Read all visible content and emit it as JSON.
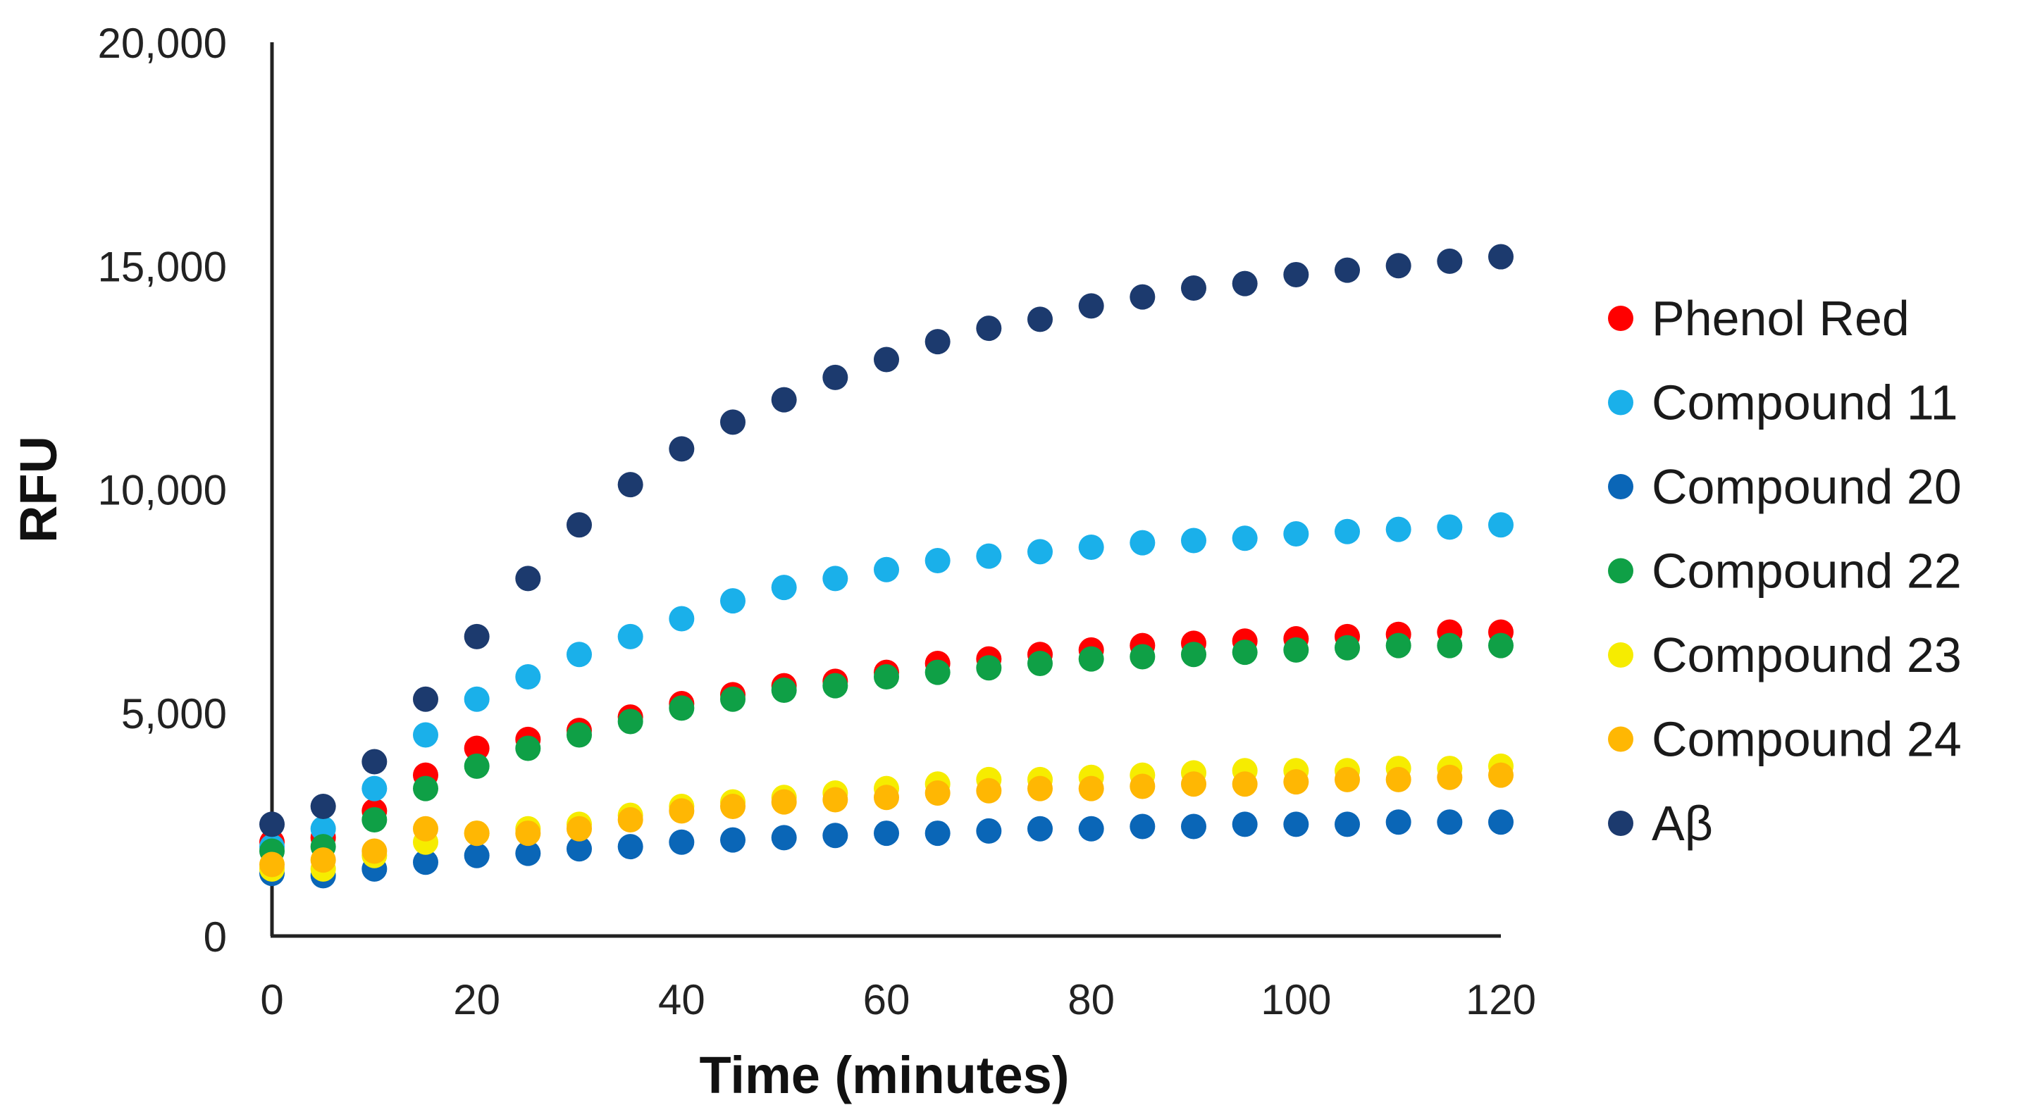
{
  "chart_data": {
    "type": "scatter",
    "title": "",
    "xlabel": "Time (minutes)",
    "ylabel": "RFU",
    "xlim": [
      0,
      120
    ],
    "ylim": [
      0,
      20000
    ],
    "xticks": [
      0,
      20,
      40,
      60,
      80,
      100,
      120
    ],
    "xtick_labels": [
      "0",
      "20",
      "40",
      "60",
      "80",
      "100",
      "120"
    ],
    "yticks": [
      0,
      5000,
      10000,
      15000,
      20000
    ],
    "ytick_labels": [
      "0",
      "5,000",
      "10,000",
      "15,000",
      "20,000"
    ],
    "grid": false,
    "legend_position": "right",
    "x": [
      0,
      5,
      10,
      15,
      20,
      25,
      30,
      35,
      40,
      45,
      50,
      55,
      60,
      65,
      70,
      75,
      80,
      85,
      90,
      95,
      100,
      105,
      110,
      115,
      120
    ],
    "series": [
      {
        "name": "Phenol Red",
        "color": "#ff0000",
        "values": [
          2100,
          2200,
          2800,
          3600,
          4200,
          4400,
          4600,
          4900,
          5200,
          5400,
          5600,
          5700,
          5900,
          6100,
          6200,
          6300,
          6400,
          6500,
          6550,
          6600,
          6650,
          6700,
          6750,
          6800,
          6800
        ]
      },
      {
        "name": "Compound 11",
        "color": "#1ab0ea",
        "values": [
          2000,
          2400,
          3300,
          4500,
          5300,
          5800,
          6300,
          6700,
          7100,
          7500,
          7800,
          8000,
          8200,
          8400,
          8500,
          8600,
          8700,
          8800,
          8850,
          8900,
          9000,
          9050,
          9100,
          9150,
          9200
        ]
      },
      {
        "name": "Compound 20",
        "color": "#0a66b7",
        "values": [
          1400,
          1350,
          1500,
          1650,
          1800,
          1850,
          1950,
          2000,
          2100,
          2150,
          2200,
          2250,
          2300,
          2300,
          2350,
          2400,
          2400,
          2450,
          2450,
          2500,
          2500,
          2500,
          2550,
          2550,
          2550
        ]
      },
      {
        "name": "Compound 22",
        "color": "#0fa046",
        "values": [
          1900,
          2000,
          2600,
          3300,
          3800,
          4200,
          4500,
          4800,
          5100,
          5300,
          5500,
          5600,
          5800,
          5900,
          6000,
          6100,
          6200,
          6250,
          6300,
          6350,
          6400,
          6450,
          6500,
          6500,
          6500
        ]
      },
      {
        "name": "Compound 23",
        "color": "#f6ec00",
        "values": [
          1500,
          1500,
          1800,
          2100,
          2300,
          2400,
          2500,
          2700,
          2900,
          3000,
          3100,
          3200,
          3300,
          3400,
          3500,
          3500,
          3550,
          3600,
          3650,
          3700,
          3700,
          3700,
          3750,
          3750,
          3800
        ]
      },
      {
        "name": "Compound 24",
        "color": "#ffb703",
        "values": [
          1600,
          1700,
          1900,
          2400,
          2300,
          2300,
          2400,
          2600,
          2800,
          2900,
          3000,
          3050,
          3100,
          3200,
          3250,
          3300,
          3300,
          3350,
          3400,
          3400,
          3450,
          3500,
          3500,
          3550,
          3600
        ]
      },
      {
        "name": "Aβ",
        "color": "#1c3a6e",
        "values": [
          2500,
          2900,
          3900,
          5300,
          6700,
          8000,
          9200,
          10100,
          10900,
          11500,
          12000,
          12500,
          12900,
          13300,
          13600,
          13800,
          14100,
          14300,
          14500,
          14600,
          14800,
          14900,
          15000,
          15100,
          15200
        ]
      }
    ]
  }
}
